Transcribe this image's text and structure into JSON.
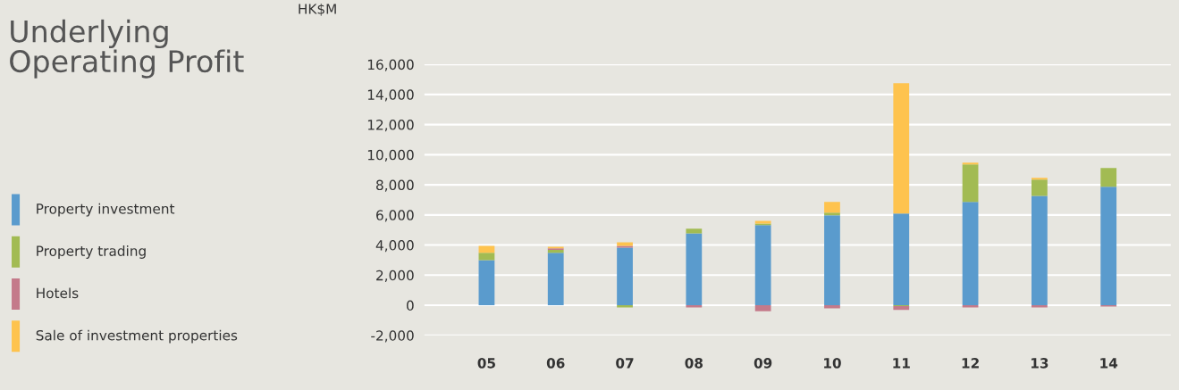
{
  "chart_data": {
    "type": "bar",
    "title": "Underlying\nOperating Profit",
    "ylabel": "HK$M",
    "stacked": true,
    "categories": [
      "05",
      "06",
      "07",
      "08",
      "09",
      "10",
      "11",
      "12",
      "13",
      "14"
    ],
    "series": [
      {
        "name": "Property investment",
        "color": "#5a9bcd",
        "values": [
          3000,
          3480,
          3830,
          4780,
          5320,
          5970,
          6090,
          6860,
          7270,
          7870
        ]
      },
      {
        "name": "Property trading",
        "color": "#a2bb53",
        "values": [
          480,
          200,
          -150,
          300,
          110,
          180,
          -50,
          2490,
          1070,
          1240
        ]
      },
      {
        "name": "Hotels",
        "color": "#c47a8a",
        "values": [
          0,
          100,
          120,
          -150,
          -400,
          -200,
          -250,
          -150,
          -150,
          -80
        ]
      },
      {
        "name": "Sale of investment properties",
        "color": "#fec34e",
        "values": [
          470,
          110,
          240,
          0,
          180,
          710,
          8650,
          120,
          120,
          0
        ]
      }
    ],
    "ylim": [
      -2000,
      16000
    ],
    "yticks": [
      {
        "value": -2000,
        "label": "-2,000"
      },
      {
        "value": 0,
        "label": "0"
      },
      {
        "value": 2000,
        "label": "2,000"
      },
      {
        "value": 4000,
        "label": "4,000"
      },
      {
        "value": 6000,
        "label": "6,000"
      },
      {
        "value": 8000,
        "label": "8,000"
      },
      {
        "value": 10000,
        "label": "10,000"
      },
      {
        "value": 12000,
        "label": "12,000"
      },
      {
        "value": 14000,
        "label": "14,000"
      },
      {
        "value": 16000,
        "label": "16,000"
      }
    ],
    "grid": "y",
    "legend": "left"
  }
}
